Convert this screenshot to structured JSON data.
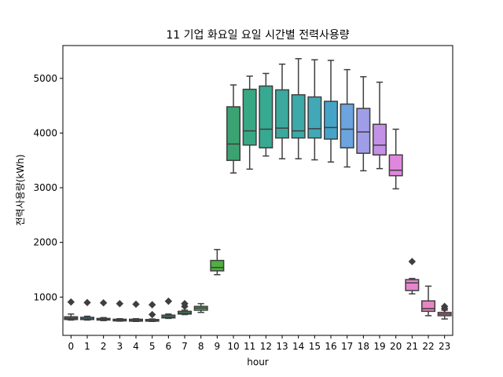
{
  "chart_data": {
    "type": "box",
    "title": "11 기업 화요일 요일 시간별 전력사용량",
    "xlabel": "hour",
    "ylabel": "전력사용량(kWh)",
    "categories": [
      "0",
      "1",
      "2",
      "3",
      "4",
      "5",
      "6",
      "7",
      "8",
      "9",
      "10",
      "11",
      "12",
      "13",
      "14",
      "15",
      "16",
      "17",
      "18",
      "19",
      "20",
      "21",
      "22",
      "23"
    ],
    "ylim": [
      300,
      5600
    ],
    "yticks": [
      1000,
      2000,
      3000,
      4000,
      5000
    ],
    "grid": false,
    "boxes": [
      {
        "hour": "0",
        "whislo": 580,
        "q1": 590,
        "med": 610,
        "q3": 640,
        "whishi": 690,
        "fliers": [
          910
        ],
        "color": "#3274a1"
      },
      {
        "hour": "1",
        "whislo": 580,
        "q1": 590,
        "med": 600,
        "q3": 630,
        "whishi": 650,
        "fliers": [
          900
        ],
        "color": "#3a7f9e"
      },
      {
        "hour": "2",
        "whislo": 570,
        "q1": 580,
        "med": 590,
        "q3": 610,
        "whishi": 625,
        "fliers": [
          895
        ],
        "color": "#3d8a98"
      },
      {
        "hour": "3",
        "whislo": 560,
        "q1": 565,
        "med": 580,
        "q3": 595,
        "whishi": 605,
        "fliers": [
          880
        ],
        "color": "#3e9292"
      },
      {
        "hour": "4",
        "whislo": 555,
        "q1": 560,
        "med": 575,
        "q3": 595,
        "whishi": 605,
        "fliers": [
          870
        ],
        "color": "#3f9a89"
      },
      {
        "hour": "5",
        "whislo": 555,
        "q1": 560,
        "med": 570,
        "q3": 590,
        "whishi": 600,
        "fliers": [
          860,
          680
        ],
        "color": "#40a17e"
      },
      {
        "hour": "6",
        "whislo": 610,
        "q1": 620,
        "med": 640,
        "q3": 670,
        "whishi": 690,
        "fliers": [
          925
        ],
        "color": "#42a871"
      },
      {
        "hour": "7",
        "whislo": 680,
        "q1": 690,
        "med": 710,
        "q3": 740,
        "whishi": 760,
        "fliers": [
          880,
          830
        ],
        "color": "#44ae63"
      },
      {
        "hour": "8",
        "whislo": 720,
        "q1": 760,
        "med": 800,
        "q3": 830,
        "whishi": 880,
        "fliers": [],
        "color": "#48b04c"
      },
      {
        "hour": "9",
        "whislo": 1410,
        "q1": 1480,
        "med": 1540,
        "q3": 1670,
        "whishi": 1870,
        "fliers": [],
        "color": "#4fb03f"
      },
      {
        "hour": "10",
        "whislo": 3270,
        "q1": 3500,
        "med": 3800,
        "q3": 4480,
        "whishi": 4880,
        "fliers": [],
        "color": "#3ba371"
      },
      {
        "hour": "11",
        "whislo": 3340,
        "q1": 3780,
        "med": 4040,
        "q3": 4800,
        "whishi": 5040,
        "fliers": [],
        "color": "#37a883"
      },
      {
        "hour": "12",
        "whislo": 3580,
        "q1": 3730,
        "med": 4070,
        "q3": 4860,
        "whishi": 5090,
        "fliers": [],
        "color": "#38a991"
      },
      {
        "hour": "13",
        "whislo": 3530,
        "q1": 3910,
        "med": 4090,
        "q3": 4790,
        "whishi": 5260,
        "fliers": [],
        "color": "#3ba99d"
      },
      {
        "hour": "14",
        "whislo": 3530,
        "q1": 3910,
        "med": 4040,
        "q3": 4700,
        "whishi": 5360,
        "fliers": [],
        "color": "#3ea9a9"
      },
      {
        "hour": "15",
        "whislo": 3510,
        "q1": 3910,
        "med": 4080,
        "q3": 4660,
        "whishi": 5340,
        "fliers": [],
        "color": "#41a8b7"
      },
      {
        "hour": "16",
        "whislo": 3470,
        "q1": 3890,
        "med": 4100,
        "q3": 4580,
        "whishi": 5330,
        "fliers": [],
        "color": "#46a4c8"
      },
      {
        "hour": "17",
        "whislo": 3380,
        "q1": 3730,
        "med": 4070,
        "q3": 4530,
        "whishi": 5160,
        "fliers": [],
        "color": "#6ca4e0"
      },
      {
        "hour": "18",
        "whislo": 3310,
        "q1": 3630,
        "med": 4020,
        "q3": 4450,
        "whishi": 5030,
        "fliers": [],
        "color": "#a09de8"
      },
      {
        "hour": "19",
        "whislo": 3350,
        "q1": 3600,
        "med": 3780,
        "q3": 4160,
        "whishi": 4930,
        "fliers": [],
        "color": "#c391e5"
      },
      {
        "hour": "20",
        "whislo": 2980,
        "q1": 3220,
        "med": 3320,
        "q3": 3600,
        "whishi": 4070,
        "fliers": [],
        "color": "#df86dd"
      },
      {
        "hour": "21",
        "whislo": 1060,
        "q1": 1120,
        "med": 1260,
        "q3": 1320,
        "whishi": 1340,
        "fliers": [
          1650
        ],
        "color": "#e784d0"
      },
      {
        "hour": "22",
        "whislo": 660,
        "q1": 740,
        "med": 790,
        "q3": 930,
        "whishi": 1200,
        "fliers": [],
        "color": "#e885c3"
      },
      {
        "hour": "23",
        "whislo": 600,
        "q1": 660,
        "med": 690,
        "q3": 720,
        "whishi": 760,
        "fliers": [
          830,
          790
        ],
        "color": "#e887b7"
      }
    ]
  }
}
